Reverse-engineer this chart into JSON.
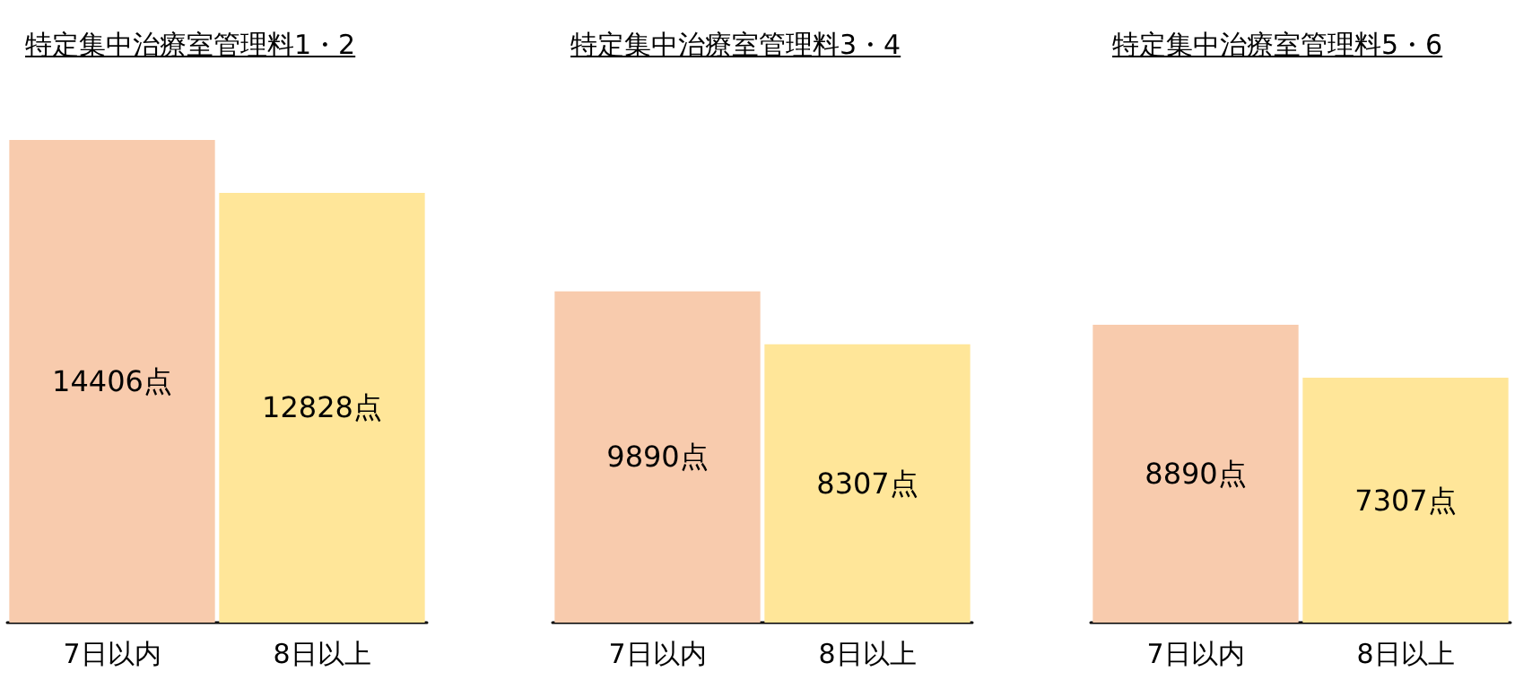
{
  "chart_data": [
    {
      "type": "bar",
      "title": "特定集中治療室管理料1・2",
      "categories": [
        "7日以内",
        "8日以上"
      ],
      "values": [
        14406,
        12828
      ],
      "colors": [
        "#f8cbad",
        "#ffe699"
      ],
      "value_labels": [
        "14406点",
        "12828点"
      ]
    },
    {
      "type": "bar",
      "title": "特定集中治療室管理料3・4",
      "categories": [
        "7日以内",
        "8日以上"
      ],
      "values": [
        9890,
        8307
      ],
      "colors": [
        "#f8cbad",
        "#ffe699"
      ],
      "value_labels": [
        "9890点",
        "8307点"
      ]
    },
    {
      "type": "bar",
      "title": "特定集中治療室管理料5・6",
      "categories": [
        "7日以内",
        "8日以上"
      ],
      "values": [
        8890,
        7307
      ],
      "colors": [
        "#f8cbad",
        "#ffe699"
      ],
      "value_labels": [
        "8890点",
        "7307点"
      ]
    }
  ]
}
